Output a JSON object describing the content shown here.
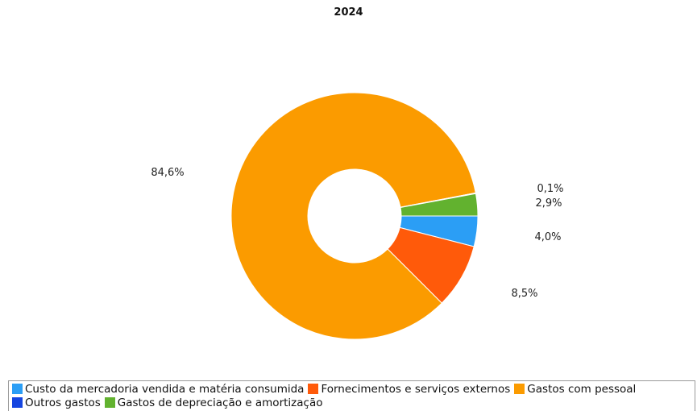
{
  "chart_data": {
    "type": "pie",
    "variant": "donut",
    "title": "2024",
    "slices": [
      {
        "label": "Custo da mercadoria vendida e matéria consumida",
        "value": 4.0,
        "value_label": "4,0%",
        "color": "#2b9ef5"
      },
      {
        "label": "Fornecimentos e serviços externos",
        "value": 8.5,
        "value_label": "8,5%",
        "color": "#ff5a0a"
      },
      {
        "label": "Gastos com pessoal",
        "value": 84.6,
        "value_label": "84,6%",
        "color": "#fb9b00"
      },
      {
        "label": "Outros gastos",
        "value": 0.1,
        "value_label": "0,1%",
        "color": "#1545e0"
      },
      {
        "label": "Gastos de depreciação e amortização",
        "value": 2.9,
        "value_label": "2,9%",
        "color": "#62b22f"
      }
    ],
    "legend": {
      "position": "bottom",
      "rows": [
        [
          0,
          1,
          2
        ],
        [
          3,
          4
        ]
      ]
    }
  }
}
